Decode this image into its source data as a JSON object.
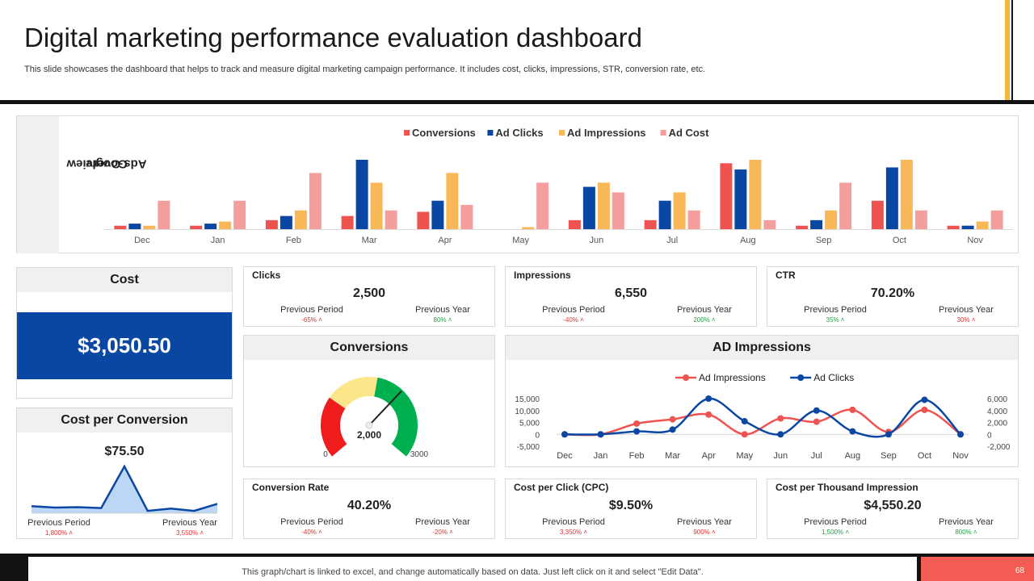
{
  "header": {
    "title": "Digital marketing performance evaluation dashboard",
    "subtitle": "This slide showcases the dashboard that helps to track and measure digital marketing campaign performance. It includes cost, clicks, impressions, STR, conversion rate, etc."
  },
  "colors": {
    "conversions": "#ef5350",
    "clicks": "#0a47a3",
    "impressions": "#f9b858",
    "cost": "#f59e9e",
    "accent": "#0a47a3"
  },
  "overview": {
    "label_line1": "Google",
    "label_line2": "Ads Overview"
  },
  "chart_data": [
    {
      "type": "bar",
      "title": "",
      "legend": [
        "Conversions",
        "Ad Clicks",
        "Ad Impressions",
        "Ad Cost"
      ],
      "legend_position": "top",
      "categories": [
        "Dec",
        "Jan",
        "Feb",
        "Mar",
        "Apr",
        "May",
        "Jun",
        "Jul",
        "Aug",
        "Sep",
        "Oct",
        "Nov"
      ],
      "ylim": [
        0,
        100
      ],
      "series": [
        {
          "name": "Conversions",
          "values": [
            5,
            5,
            13,
            19,
            25,
            0,
            13,
            13,
            95,
            5,
            41,
            5
          ]
        },
        {
          "name": "Ad Clicks",
          "values": [
            8,
            8,
            19,
            100,
            41,
            0,
            61,
            41,
            86,
            13,
            89,
            5
          ]
        },
        {
          "name": "Ad Impressions",
          "values": [
            5,
            11,
            27,
            67,
            81,
            3,
            67,
            53,
            100,
            27,
            100,
            11
          ]
        },
        {
          "name": "Ad Cost",
          "values": [
            41,
            41,
            81,
            27,
            35,
            67,
            53,
            27,
            13,
            67,
            27,
            27
          ]
        }
      ]
    },
    {
      "type": "line",
      "title": "AD Impressions",
      "legend": [
        "Ad Impressions",
        "Ad Clicks"
      ],
      "legend_position": "top",
      "categories": [
        "Dec",
        "Jan",
        "Feb",
        "Mar",
        "Apr",
        "May",
        "Jun",
        "Jul",
        "Aug",
        "Sep",
        "Oct",
        "Nov"
      ],
      "ylim_left": [
        -5000,
        15000
      ],
      "ylim_right": [
        -2000,
        6000
      ],
      "yticks_left": [
        "15,000",
        "10,000",
        "5,000",
        "0",
        "-5,000"
      ],
      "yticks_right": [
        "6,000",
        "4,000",
        "2,000",
        "0",
        "-2,000"
      ],
      "series": [
        {
          "name": "Ad Impressions",
          "axis": "left",
          "values": [
            0,
            0,
            4500,
            6300,
            8300,
            0,
            6700,
            5300,
            10300,
            1000,
            10300,
            0
          ]
        },
        {
          "name": "Ad Clicks",
          "axis": "right",
          "values": [
            0,
            0,
            500,
            800,
            6000,
            2200,
            0,
            4000,
            500,
            0,
            5800,
            0
          ]
        }
      ]
    },
    {
      "type": "area",
      "title": "Cost per Conversion",
      "categories": [
        "1",
        "2",
        "3",
        "4",
        "5",
        "6",
        "7",
        "8",
        "9"
      ],
      "ylim": [
        0,
        100
      ],
      "values": [
        15,
        12,
        13,
        11,
        100,
        5,
        10,
        5,
        20
      ]
    },
    {
      "type": "gauge",
      "title": "Conversions",
      "min": 0,
      "max": 3000,
      "value": 2000,
      "min_label": "0",
      "max_label": "3000",
      "value_label": "2,000"
    }
  ],
  "cost": {
    "title": "Cost",
    "value": "$3,050.50"
  },
  "cost_per_conversion": {
    "title": "Cost  per Conversion",
    "value": "$75.50",
    "prev_period_label": "Previous Period",
    "prev_period_pct": "1,800% ˄",
    "prev_year_label": "Previous Year",
    "prev_year_pct": "3,550% ˄"
  },
  "kpis": [
    {
      "title": "Clicks",
      "value": "2,500",
      "pp_label": "Previous Period",
      "pp_pct": "-65% ˄",
      "py_label": "Previous Year",
      "py_pct": "80% ˄"
    },
    {
      "title": "Impressions",
      "value": "6,550",
      "pp_label": "Previous Period",
      "pp_pct": "-40% ˄",
      "py_label": "Previous Year",
      "py_pct": "200% ˄"
    },
    {
      "title": "CTR",
      "value": "70.20%",
      "pp_label": "Previous Period",
      "pp_pct": "35% ˄",
      "py_label": "Previous Year",
      "py_pct": "30% ˄"
    },
    {
      "title": "Conversion Rate",
      "value": "40.20%",
      "pp_label": "Previous Period",
      "pp_pct": "-40% ˄",
      "py_label": "Previous Year",
      "py_pct": "-20% ˄"
    },
    {
      "title": "Cost per Click (CPC)",
      "value": "$9.50%",
      "pp_label": "Previous Period",
      "pp_pct": "3,350% ˄",
      "py_label": "Previous Year",
      "py_pct": "900% ˄"
    },
    {
      "title": "Cost per Thousand Impression",
      "value": "$4,550.20",
      "pp_label": "Previous Period",
      "pp_pct": "1,500% ˄",
      "py_label": "Previous Year",
      "py_pct": "800% ˄"
    }
  ],
  "conversions_panel": {
    "title": "Conversions"
  },
  "impressions_panel": {
    "title": "AD Impressions"
  },
  "footer": {
    "note": "This graph/chart is linked to excel,  and change automatically based on data. Just left click on it and select \"Edit Data\".",
    "page": "68"
  }
}
